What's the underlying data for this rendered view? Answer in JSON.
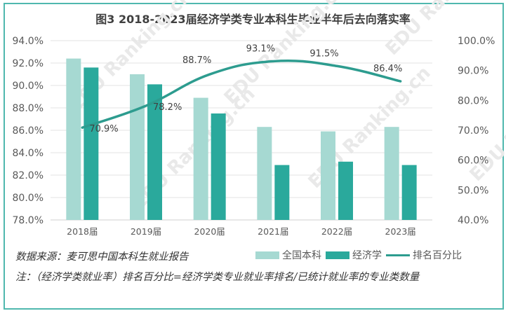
{
  "chart_data": {
    "type": "bar+line",
    "title": "图3 2018-2023届经济学类专业本科生毕业半年后去向落实率",
    "categories": [
      "2018届",
      "2019届",
      "2020届",
      "2021届",
      "2022届",
      "2023届"
    ],
    "series": [
      {
        "name": "全国本科",
        "type": "bar",
        "axis": "left",
        "color": "#a6d9d2",
        "values": [
          92.4,
          91.0,
          88.9,
          86.3,
          85.9,
          86.3
        ]
      },
      {
        "name": "经济学",
        "type": "bar",
        "axis": "left",
        "color": "#2aa99c",
        "values": [
          91.6,
          90.1,
          87.5,
          82.9,
          83.2,
          82.9
        ]
      },
      {
        "name": "排名百分比",
        "type": "line",
        "axis": "right",
        "color": "#2d9c8f",
        "values": [
          70.9,
          78.2,
          88.7,
          93.1,
          91.5,
          86.4
        ],
        "labels": [
          "70.9%",
          "78.2%",
          "88.7%",
          "93.1%",
          "91.5%",
          "86.4%"
        ]
      }
    ],
    "left_axis": {
      "min": 78,
      "max": 94,
      "step": 2,
      "ticks": [
        "94.0%",
        "92.0%",
        "90.0%",
        "88.0%",
        "86.0%",
        "84.0%",
        "82.0%",
        "80.0%",
        "78.0%"
      ]
    },
    "right_axis": {
      "min": 40,
      "max": 100,
      "step": 10,
      "ticks": [
        "100.0%",
        "90.0%",
        "80.0%",
        "70.0%",
        "60.0%",
        "50.0%",
        "40.0%"
      ]
    },
    "grid": true,
    "legend_position": "bottom-right"
  },
  "legend": [
    "全国本科",
    "经济学",
    "排名百分比"
  ],
  "footer": {
    "source": "数据来源：麦可思中国本科生就业报告",
    "note": "注：（经济学类就业率）排名百分比=经济学类专业就业率排名/已统计就业率的专业类数量"
  },
  "watermark": "EDU Ranking.cn"
}
